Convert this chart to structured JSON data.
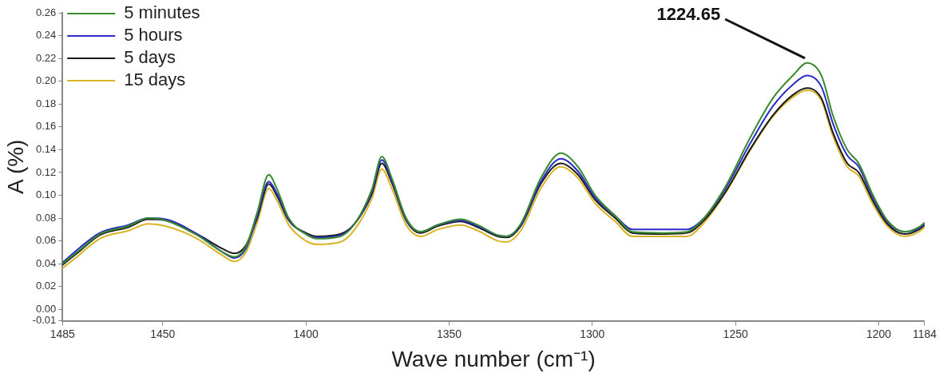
{
  "chart_data": {
    "type": "line",
    "xlabel": "Wave number (cm⁻¹)",
    "ylabel": "A (%)",
    "x": [
      1485,
      1479,
      1472,
      1462,
      1455,
      1449,
      1438,
      1429,
      1425,
      1421,
      1417,
      1413,
      1410,
      1406,
      1400,
      1396,
      1388,
      1383,
      1377,
      1373.5,
      1370,
      1365,
      1360,
      1354,
      1346,
      1340,
      1333,
      1330,
      1325,
      1318,
      1311,
      1305,
      1299,
      1292,
      1286,
      1275,
      1267,
      1261,
      1253,
      1245,
      1237,
      1230,
      1225,
      1220,
      1216,
      1211,
      1207,
      1202,
      1197,
      1191,
      1186,
      1184
    ],
    "series": [
      {
        "name": "5 minutes",
        "color": "#3a8a2e",
        "values": [
          0.04,
          0.052,
          0.066,
          0.073,
          0.08,
          0.078,
          0.065,
          0.05,
          0.046,
          0.055,
          0.085,
          0.118,
          0.105,
          0.08,
          0.066,
          0.062,
          0.064,
          0.075,
          0.105,
          0.134,
          0.115,
          0.08,
          0.068,
          0.074,
          0.079,
          0.074,
          0.065,
          0.064,
          0.075,
          0.115,
          0.137,
          0.125,
          0.1,
          0.082,
          0.068,
          0.067,
          0.068,
          0.08,
          0.11,
          0.15,
          0.185,
          0.205,
          0.216,
          0.205,
          0.17,
          0.14,
          0.128,
          0.1,
          0.078,
          0.068,
          0.072,
          0.076
        ]
      },
      {
        "name": "5 hours",
        "color": "#2b2bc8",
        "values": [
          0.041,
          0.054,
          0.067,
          0.074,
          0.08,
          0.079,
          0.066,
          0.05,
          0.045,
          0.053,
          0.082,
          0.112,
          0.101,
          0.079,
          0.066,
          0.063,
          0.065,
          0.075,
          0.103,
          0.131,
          0.113,
          0.079,
          0.068,
          0.074,
          0.078,
          0.073,
          0.065,
          0.064,
          0.074,
          0.112,
          0.132,
          0.121,
          0.098,
          0.082,
          0.07,
          0.07,
          0.07,
          0.08,
          0.108,
          0.145,
          0.178,
          0.197,
          0.205,
          0.195,
          0.163,
          0.135,
          0.125,
          0.098,
          0.077,
          0.068,
          0.071,
          0.075
        ]
      },
      {
        "name": "5 days",
        "color": "#1a1a1a",
        "values": [
          0.039,
          0.051,
          0.065,
          0.072,
          0.079,
          0.078,
          0.066,
          0.053,
          0.049,
          0.056,
          0.08,
          0.11,
          0.099,
          0.078,
          0.067,
          0.064,
          0.066,
          0.075,
          0.101,
          0.128,
          0.111,
          0.078,
          0.067,
          0.073,
          0.077,
          0.072,
          0.064,
          0.063,
          0.073,
          0.11,
          0.128,
          0.118,
          0.096,
          0.08,
          0.067,
          0.066,
          0.067,
          0.078,
          0.105,
          0.14,
          0.17,
          0.188,
          0.194,
          0.185,
          0.155,
          0.128,
          0.12,
          0.095,
          0.075,
          0.066,
          0.07,
          0.074
        ]
      },
      {
        "name": "15 days",
        "color": "#d9b32a",
        "values": [
          0.036,
          0.048,
          0.062,
          0.069,
          0.075,
          0.073,
          0.062,
          0.047,
          0.042,
          0.05,
          0.076,
          0.106,
          0.095,
          0.074,
          0.06,
          0.057,
          0.059,
          0.07,
          0.097,
          0.123,
          0.106,
          0.074,
          0.064,
          0.07,
          0.074,
          0.069,
          0.06,
          0.059,
          0.069,
          0.106,
          0.125,
          0.115,
          0.093,
          0.077,
          0.064,
          0.064,
          0.064,
          0.076,
          0.104,
          0.139,
          0.169,
          0.186,
          0.192,
          0.183,
          0.152,
          0.125,
          0.117,
          0.092,
          0.073,
          0.064,
          0.068,
          0.072
        ]
      }
    ],
    "xlim": [
      1485,
      1184
    ],
    "xticks": [
      1485,
      1450,
      1400,
      1350,
      1300,
      1250,
      1200,
      1184
    ],
    "ylim": [
      -0.01,
      0.26
    ],
    "yticks": [
      {
        "value": -0.01,
        "label": "-0.01"
      },
      {
        "value": 0,
        "label": "0.00"
      },
      {
        "value": 0.02,
        "label": "0.02"
      },
      {
        "value": 0.04,
        "label": "0.04"
      },
      {
        "value": 0.06,
        "label": "0.06"
      },
      {
        "value": 0.08,
        "label": "0.08"
      },
      {
        "value": 0.1,
        "label": "0.10"
      },
      {
        "value": 0.12,
        "label": "0.12"
      },
      {
        "value": 0.14,
        "label": "0.14"
      },
      {
        "value": 0.16,
        "label": "0.16"
      },
      {
        "value": 0.18,
        "label": "0.18"
      },
      {
        "value": 0.2,
        "label": "0.20"
      },
      {
        "value": 0.22,
        "label": "0.22"
      },
      {
        "value": 0.24,
        "label": "0.24"
      },
      {
        "value": 0.26,
        "label": "0.26"
      }
    ],
    "grid": false,
    "legend": "top left",
    "marker": "none",
    "line_style": "solid",
    "annotations": [
      {
        "text": "1224.65",
        "x": 1224.65,
        "y": 0.216
      }
    ]
  }
}
